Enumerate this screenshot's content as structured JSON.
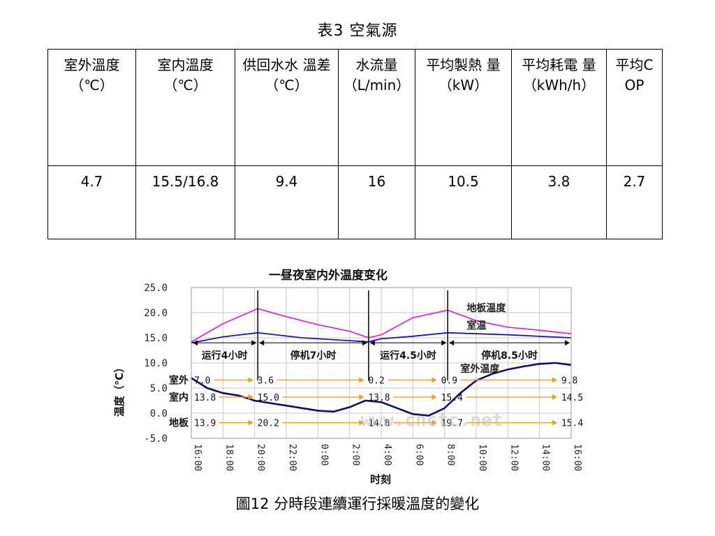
{
  "slide": {
    "title": "表3 空氣源",
    "caption": "圖12 分時段連續運行採暖溫度的變化"
  },
  "table": {
    "headers": [
      "室外溫度（℃）",
      "室内溫度（℃）",
      "供回水水 溫差（℃）",
      "水流量（L/min）",
      "平均製熱 量（kW）",
      "平均耗電 量（kWh/h）",
      "平均COP"
    ],
    "values": [
      "4.7",
      "15.5/16.8",
      "9.4",
      "16",
      "10.5",
      "3.8",
      "2.7"
    ]
  },
  "chart_data": {
    "type": "line",
    "title": "一昼夜室内外温度变化",
    "xlabel": "时刻",
    "ylabel": "温度（℃）",
    "ylim": [
      -5.0,
      25.0
    ],
    "yticks": [
      "25.0",
      "20.0",
      "15.0",
      "10.0",
      "5.0",
      "0.0",
      "-5.0"
    ],
    "x_tick_labels": [
      "16:00",
      "18:00",
      "20:00",
      "22:00",
      "0:00",
      "2:00",
      "4:00",
      "6:00",
      "8:00",
      "10:00",
      "12:00",
      "14:00",
      "16:00"
    ],
    "x_unit_hours_from_16": true,
    "grid": true,
    "series": [
      {
        "name": "地板温度",
        "color": "#cc33cc",
        "x": [
          0,
          2,
          4.2,
          6,
          8,
          10,
          11.2,
          12,
          14,
          16.2,
          18,
          20,
          22,
          24
        ],
        "values": [
          14.2,
          17.8,
          20.8,
          19.2,
          17.6,
          16.3,
          15.0,
          15.6,
          19.0,
          20.5,
          18.4,
          17.1,
          16.5,
          15.8
        ]
      },
      {
        "name": "室温",
        "color": "#1a1a99",
        "x": [
          0,
          2,
          4.2,
          7,
          11.2,
          12,
          14,
          16.2,
          20,
          24
        ],
        "values": [
          14.0,
          15.2,
          16.0,
          15.0,
          14.2,
          14.8,
          15.3,
          16.0,
          15.6,
          15.0
        ]
      },
      {
        "name": "室外温度",
        "color": "#101060",
        "x": [
          0,
          1,
          2,
          3,
          4,
          5,
          6,
          7,
          8,
          9,
          10,
          11,
          12,
          13,
          14,
          15,
          16,
          17,
          18,
          19,
          20,
          21,
          22,
          23,
          24
        ],
        "values": [
          7.0,
          5.0,
          4.0,
          3.5,
          2.5,
          2.0,
          1.5,
          1.0,
          0.5,
          0.3,
          1.2,
          2.5,
          2.2,
          1.0,
          -0.2,
          -0.5,
          1.0,
          4.0,
          6.5,
          7.8,
          8.7,
          9.3,
          9.8,
          10.0,
          9.6
        ]
      }
    ],
    "period_labels": [
      "运行4小时",
      "停机7小时",
      "运行4.5小时",
      "停机8.5小时"
    ],
    "row_labels": [
      "室外",
      "室内",
      "地板"
    ],
    "row_values": [
      [
        "7.0",
        "3.6",
        "0.2",
        "0.9",
        "9.8"
      ],
      [
        "13.8",
        "15.0",
        "13.8",
        "15.4",
        "14.5"
      ],
      [
        "13.9",
        "20.2",
        "14.8",
        "19.7",
        "15.4"
      ]
    ],
    "watermark": "www.cnctc.net"
  }
}
